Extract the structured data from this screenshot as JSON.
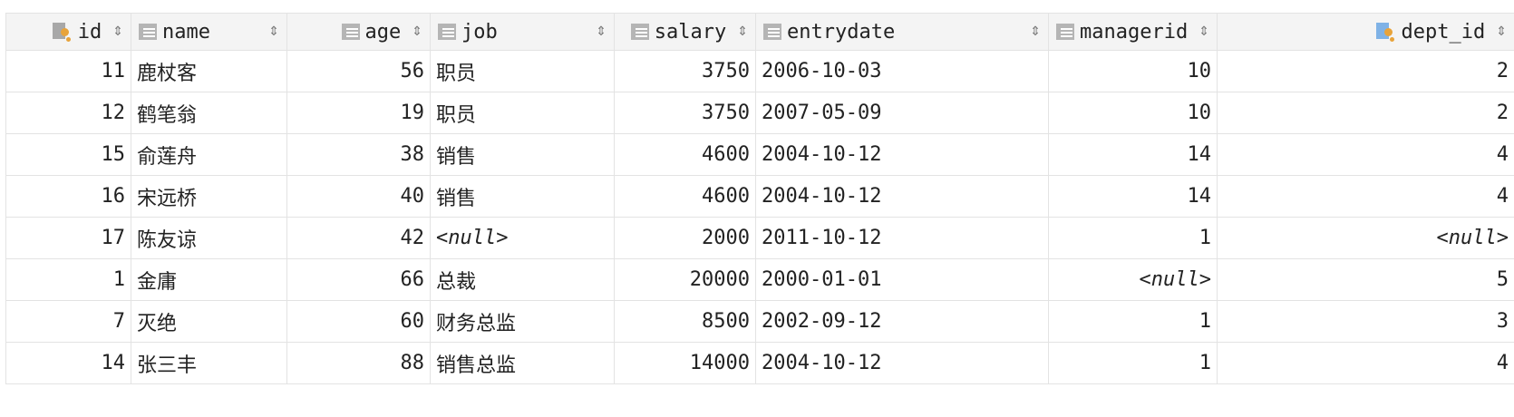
{
  "columns": [
    {
      "key": "id",
      "label": "id",
      "icon": "primary-key-column-icon",
      "align": "right"
    },
    {
      "key": "name",
      "label": "name",
      "icon": "column-icon",
      "align": "left"
    },
    {
      "key": "age",
      "label": "age",
      "icon": "column-icon",
      "align": "right"
    },
    {
      "key": "job",
      "label": "job",
      "icon": "column-icon",
      "align": "left"
    },
    {
      "key": "salary",
      "label": "salary",
      "icon": "column-icon",
      "align": "right"
    },
    {
      "key": "entrydate",
      "label": "entrydate",
      "icon": "column-icon",
      "align": "left"
    },
    {
      "key": "managerid",
      "label": "managerid",
      "icon": "column-icon",
      "align": "right"
    },
    {
      "key": "dept_id",
      "label": "dept_id",
      "icon": "foreign-key-column-icon",
      "align": "right"
    }
  ],
  "sort_glyph": "⇕",
  "null_text": "<null>",
  "rows": [
    {
      "id": "11",
      "name": "鹿杖客",
      "age": "56",
      "job": "职员",
      "salary": "3750",
      "entrydate": "2006-10-03",
      "managerid": "10",
      "dept_id": "2"
    },
    {
      "id": "12",
      "name": "鹤笔翁",
      "age": "19",
      "job": "职员",
      "salary": "3750",
      "entrydate": "2007-05-09",
      "managerid": "10",
      "dept_id": "2"
    },
    {
      "id": "15",
      "name": "俞莲舟",
      "age": "38",
      "job": "销售",
      "salary": "4600",
      "entrydate": "2004-10-12",
      "managerid": "14",
      "dept_id": "4"
    },
    {
      "id": "16",
      "name": "宋远桥",
      "age": "40",
      "job": "销售",
      "salary": "4600",
      "entrydate": "2004-10-12",
      "managerid": "14",
      "dept_id": "4"
    },
    {
      "id": "17",
      "name": "陈友谅",
      "age": "42",
      "job": "<null>",
      "salary": "2000",
      "entrydate": "2011-10-12",
      "managerid": "1",
      "dept_id": "<null>"
    },
    {
      "id": "1",
      "name": "金庸",
      "age": "66",
      "job": "总裁",
      "salary": "20000",
      "entrydate": "2000-01-01",
      "managerid": "<null>",
      "dept_id": "5"
    },
    {
      "id": "7",
      "name": "灭绝",
      "age": "60",
      "job": "财务总监",
      "salary": "8500",
      "entrydate": "2002-09-12",
      "managerid": "1",
      "dept_id": "3"
    },
    {
      "id": "14",
      "name": "张三丰",
      "age": "88",
      "job": "销售总监",
      "salary": "14000",
      "entrydate": "2004-10-12",
      "managerid": "1",
      "dept_id": "4"
    }
  ]
}
